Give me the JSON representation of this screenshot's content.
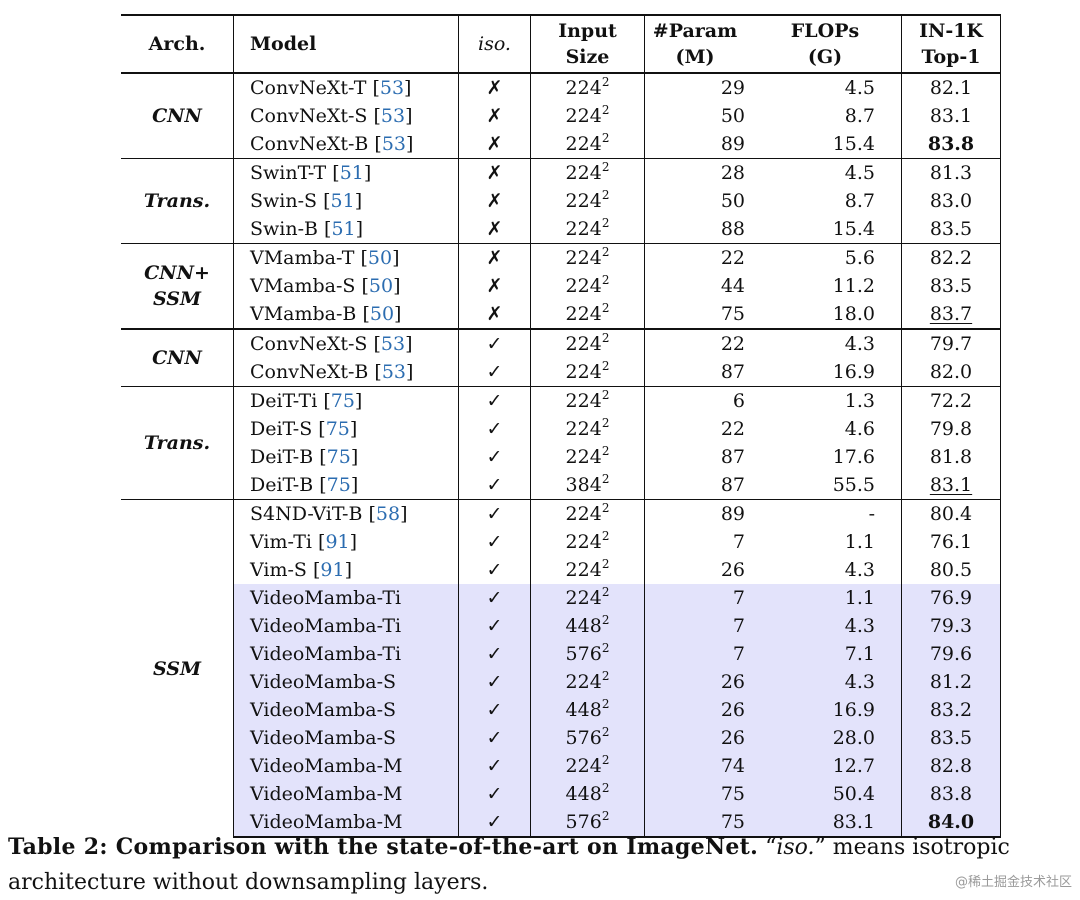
{
  "table": {
    "headers": {
      "arch": "Arch.",
      "model": "Model",
      "iso": "iso.",
      "input_size": [
        "Input",
        "Size"
      ],
      "param": [
        "#Param",
        "(M)"
      ],
      "flops": [
        "FLOPs",
        "(G)"
      ],
      "top1": [
        "IN-1K",
        "Top-1"
      ]
    },
    "groups": [
      {
        "arch": [
          "CNN"
        ],
        "rows": [
          {
            "model": "ConvNeXt-T ",
            "ref": "53",
            "iso": "✗",
            "size": "224",
            "param": "29",
            "flops": "4.5",
            "top1": "82.1"
          },
          {
            "model": "ConvNeXt-S ",
            "ref": "53",
            "iso": "✗",
            "size": "224",
            "param": "50",
            "flops": "8.7",
            "top1": "83.1"
          },
          {
            "model": "ConvNeXt-B ",
            "ref": "53",
            "iso": "✗",
            "size": "224",
            "param": "89",
            "flops": "15.4",
            "top1": "83.8",
            "top1_style": "bold"
          }
        ]
      },
      {
        "arch": [
          "Trans."
        ],
        "rows": [
          {
            "model": "SwinT-T ",
            "ref": "51",
            "iso": "✗",
            "size": "224",
            "param": "28",
            "flops": "4.5",
            "top1": "81.3"
          },
          {
            "model": "Swin-S ",
            "ref": "51",
            "iso": "✗",
            "size": "224",
            "param": "50",
            "flops": "8.7",
            "top1": "83.0"
          },
          {
            "model": "Swin-B ",
            "ref": "51",
            "iso": "✗",
            "size": "224",
            "param": "88",
            "flops": "15.4",
            "top1": "83.5"
          }
        ]
      },
      {
        "arch": [
          "CNN+",
          "SSM"
        ],
        "rows": [
          {
            "model": "VMamba-T ",
            "ref": "50",
            "iso": "✗",
            "size": "224",
            "param": "22",
            "flops": "5.6",
            "top1": "82.2"
          },
          {
            "model": "VMamba-S ",
            "ref": "50",
            "iso": "✗",
            "size": "224",
            "param": "44",
            "flops": "11.2",
            "top1": "83.5"
          },
          {
            "model": "VMamba-B ",
            "ref": "50",
            "iso": "✗",
            "size": "224",
            "param": "75",
            "flops": "18.0",
            "top1": "83.7",
            "top1_style": "under"
          }
        ]
      },
      {
        "arch": [
          "CNN"
        ],
        "thick": true,
        "rows": [
          {
            "model": "ConvNeXt-S ",
            "ref": "53",
            "iso": "✓",
            "size": "224",
            "param": "22",
            "flops": "4.3",
            "top1": "79.7"
          },
          {
            "model": "ConvNeXt-B ",
            "ref": "53",
            "iso": "✓",
            "size": "224",
            "param": "87",
            "flops": "16.9",
            "top1": "82.0"
          }
        ]
      },
      {
        "arch": [
          "Trans."
        ],
        "rows": [
          {
            "model": "DeiT-Ti ",
            "ref": "75",
            "iso": "✓",
            "size": "224",
            "param": "6",
            "flops": "1.3",
            "top1": "72.2"
          },
          {
            "model": "DeiT-S ",
            "ref": "75",
            "iso": "✓",
            "size": "224",
            "param": "22",
            "flops": "4.6",
            "top1": "79.8"
          },
          {
            "model": "DeiT-B ",
            "ref": "75",
            "iso": "✓",
            "size": "224",
            "param": "87",
            "flops": "17.6",
            "top1": "81.8"
          },
          {
            "model": "DeiT-B ",
            "ref": "75",
            "iso": "✓",
            "size": "384",
            "param": "87",
            "flops": "55.5",
            "top1": "83.1",
            "top1_style": "under"
          }
        ]
      },
      {
        "arch": [
          "SSM"
        ],
        "rows": [
          {
            "model": "S4ND-ViT-B ",
            "ref": "58",
            "iso": "✓",
            "size": "224",
            "param": "89",
            "flops": "-",
            "top1": "80.4"
          },
          {
            "model": "Vim-Ti ",
            "ref": "91",
            "iso": "✓",
            "size": "224",
            "param": "7",
            "flops": "1.1",
            "top1": "76.1"
          },
          {
            "model": "Vim-S ",
            "ref": "91",
            "iso": "✓",
            "size": "224",
            "param": "26",
            "flops": "4.3",
            "top1": "80.5"
          },
          {
            "model": "VideoMamba-Ti",
            "iso": "✓",
            "size": "224",
            "param": "7",
            "flops": "1.1",
            "top1": "76.9",
            "highlight": true
          },
          {
            "model": "VideoMamba-Ti",
            "iso": "✓",
            "size": "448",
            "param": "7",
            "flops": "4.3",
            "top1": "79.3",
            "highlight": true
          },
          {
            "model": "VideoMamba-Ti",
            "iso": "✓",
            "size": "576",
            "param": "7",
            "flops": "7.1",
            "top1": "79.6",
            "highlight": true
          },
          {
            "model": "VideoMamba-S",
            "iso": "✓",
            "size": "224",
            "param": "26",
            "flops": "4.3",
            "top1": "81.2",
            "highlight": true
          },
          {
            "model": "VideoMamba-S",
            "iso": "✓",
            "size": "448",
            "param": "26",
            "flops": "16.9",
            "top1": "83.2",
            "highlight": true
          },
          {
            "model": "VideoMamba-S",
            "iso": "✓",
            "size": "576",
            "param": "26",
            "flops": "28.0",
            "top1": "83.5",
            "highlight": true
          },
          {
            "model": "VideoMamba-M",
            "iso": "✓",
            "size": "224",
            "param": "74",
            "flops": "12.7",
            "top1": "82.8",
            "highlight": true
          },
          {
            "model": "VideoMamba-M",
            "iso": "✓",
            "size": "448",
            "param": "75",
            "flops": "50.4",
            "top1": "83.8",
            "highlight": true
          },
          {
            "model": "VideoMamba-M",
            "iso": "✓",
            "size": "576",
            "param": "75",
            "flops": "83.1",
            "top1": "84.0",
            "top1_style": "bold",
            "highlight": true
          }
        ]
      }
    ]
  },
  "caption": {
    "bold": "Table 2: Comparison with the state-of-the-art on ImageNet.",
    "quote_open": " “",
    "iso": "iso.",
    "rest": "” means isotropic architecture without downsampling layers."
  },
  "watermark": "@稀土掘金技术社区",
  "colors": {
    "highlight": "#e3e3fb",
    "citation": "#2b6cb0"
  }
}
